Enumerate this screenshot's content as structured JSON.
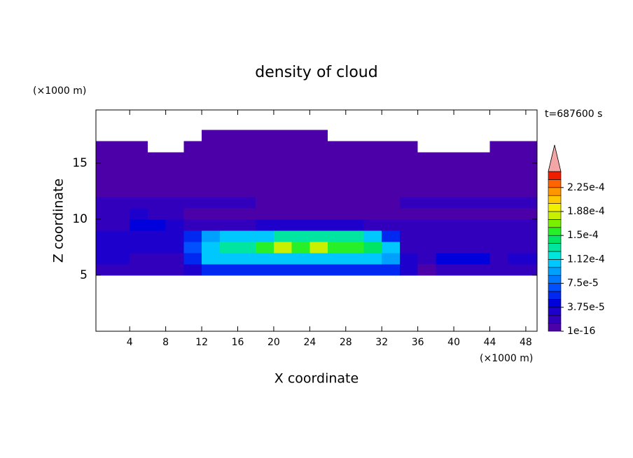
{
  "chart_data": {
    "type": "contour",
    "title": "density of cloud",
    "x_unit_label": "(×1000 m)",
    "y_unit_label": "(×1000 m)",
    "time_label": "t=687600 s",
    "xlabel": "X coordinate",
    "ylabel": "Z coordinate",
    "xlim": [
      0.25,
      49.25
    ],
    "ylim": [
      0,
      19.75
    ],
    "xticks": [
      4,
      8,
      12,
      16,
      20,
      24,
      28,
      32,
      36,
      40,
      44,
      48
    ],
    "yticks": [
      5,
      10,
      15
    ],
    "x": [
      1,
      3,
      5,
      7,
      9,
      11,
      13,
      15,
      17,
      19,
      21,
      23,
      25,
      27,
      29,
      31,
      33,
      35,
      37,
      39,
      41,
      43,
      45,
      47,
      49
    ],
    "z": [
      0.5,
      1.5,
      2.5,
      3.5,
      4.5,
      5.5,
      6.5,
      7.5,
      8.5,
      9.5,
      10.5,
      11.5,
      12.5,
      13.5,
      14.5,
      15.5,
      16.5,
      17.5,
      18.5,
      19.5
    ],
    "values": [
      [
        0,
        0,
        0,
        0,
        0,
        0,
        0,
        0,
        0,
        0,
        0,
        0,
        0,
        0,
        0,
        0,
        0,
        0,
        0,
        0,
        0,
        0,
        0,
        0,
        0
      ],
      [
        0,
        0,
        0,
        0,
        0,
        0,
        0,
        0,
        0,
        0,
        0,
        0,
        0,
        0,
        0,
        0,
        0,
        0,
        0,
        0,
        0,
        0,
        0,
        0,
        0
      ],
      [
        0,
        0,
        0,
        0,
        0,
        0,
        0,
        0,
        0,
        0,
        0,
        0,
        0,
        0,
        0,
        0,
        0,
        0,
        0,
        0,
        0,
        0,
        0,
        0,
        0
      ],
      [
        0,
        0,
        0,
        0,
        0,
        0,
        0,
        0,
        0,
        0,
        0,
        0,
        0,
        0,
        0,
        0,
        0,
        0,
        0,
        0,
        0,
        0,
        0,
        0,
        0
      ],
      [
        0,
        0,
        0,
        0,
        0,
        0,
        0,
        0,
        0,
        0,
        0,
        0,
        0,
        0,
        0,
        0,
        0,
        0,
        0,
        0,
        0,
        0,
        0,
        0,
        0
      ],
      [
        2e-05,
        2e-05,
        1.5e-05,
        1.5e-05,
        1.5e-05,
        2.5e-05,
        5e-05,
        5e-05,
        5e-05,
        5e-05,
        6e-05,
        6e-05,
        6e-05,
        6e-05,
        5e-05,
        5e-05,
        5e-05,
        2.5e-05,
        1e-05,
        2e-05,
        2e-05,
        2e-05,
        1.5e-05,
        1.5e-05,
        1.5e-05
      ],
      [
        3.5e-05,
        3.5e-05,
        2e-05,
        2e-05,
        2e-05,
        6e-05,
        0.0001,
        0.00011,
        0.00011,
        0.00011,
        0.00011,
        0.00011,
        0.00011,
        0.00011,
        0.00011,
        0.00011,
        9e-05,
        3e-05,
        1.5e-05,
        4e-05,
        4e-05,
        4e-05,
        2e-05,
        3e-05,
        3e-05
      ],
      [
        2.5e-05,
        2.5e-05,
        2.5e-05,
        2.5e-05,
        2.5e-05,
        7e-05,
        0.00011,
        0.00013,
        0.000135,
        0.00016,
        0.000175,
        0.00016,
        0.000175,
        0.00016,
        0.00016,
        0.00014,
        0.0001,
        2e-05,
        1.5e-05,
        1.5e-05,
        1.5e-05,
        1.5e-05,
        1.5e-05,
        1.5e-05,
        1.5e-05
      ],
      [
        2.5e-05,
        2.5e-05,
        2.5e-05,
        2.5e-05,
        2.5e-05,
        5e-05,
        9e-05,
        0.000105,
        0.000105,
        0.000105,
        0.000125,
        0.000125,
        0.000125,
        0.000125,
        0.000125,
        0.0001,
        6e-05,
        2e-05,
        1.5e-05,
        1.5e-05,
        1.5e-05,
        1.5e-05,
        1.5e-05,
        1.5e-05,
        1.5e-05
      ],
      [
        2e-05,
        2e-05,
        4e-05,
        4e-05,
        2.5e-05,
        2e-05,
        2e-05,
        2e-05,
        2e-05,
        3e-05,
        3e-05,
        3e-05,
        3e-05,
        3e-05,
        3e-05,
        1.5e-05,
        1.5e-05,
        1.5e-05,
        1.5e-05,
        1.5e-05,
        1.5e-05,
        1.5e-05,
        1.5e-05,
        1.5e-05,
        1.5e-05
      ],
      [
        1.5e-05,
        1.5e-05,
        3e-05,
        1.5e-05,
        1.5e-05,
        1e-05,
        1e-05,
        1e-05,
        1e-05,
        1e-05,
        1e-05,
        1e-05,
        1e-05,
        1e-05,
        1e-05,
        1e-05,
        1e-05,
        1e-05,
        1e-05,
        1e-05,
        1e-05,
        1e-05,
        1e-05,
        1e-05,
        1e-05
      ],
      [
        1.3e-05,
        1.3e-05,
        1.3e-05,
        1.3e-05,
        1.3e-05,
        1.3e-05,
        1.3e-05,
        1.3e-05,
        1.3e-05,
        5e-06,
        5e-06,
        5e-06,
        5e-06,
        5e-06,
        5e-06,
        5e-06,
        5e-06,
        1.3e-05,
        1.3e-05,
        1.3e-05,
        1.3e-05,
        1.3e-05,
        1.3e-05,
        1.3e-05,
        1.3e-05
      ],
      [
        5e-06,
        5e-06,
        5e-06,
        5e-06,
        5e-06,
        5e-06,
        5e-06,
        5e-06,
        5e-06,
        5e-06,
        5e-06,
        5e-06,
        5e-06,
        5e-06,
        5e-06,
        5e-06,
        5e-06,
        5e-06,
        5e-06,
        5e-06,
        5e-06,
        5e-06,
        5e-06,
        5e-06,
        5e-06
      ],
      [
        5e-06,
        5e-06,
        5e-06,
        5e-06,
        5e-06,
        5e-06,
        5e-06,
        5e-06,
        5e-06,
        5e-06,
        5e-06,
        5e-06,
        5e-06,
        5e-06,
        5e-06,
        5e-06,
        5e-06,
        5e-06,
        5e-06,
        5e-06,
        5e-06,
        5e-06,
        5e-06,
        5e-06,
        5e-06
      ],
      [
        5e-06,
        5e-06,
        5e-06,
        5e-06,
        5e-06,
        5e-06,
        5e-06,
        5e-06,
        5e-06,
        5e-06,
        5e-06,
        5e-06,
        5e-06,
        5e-06,
        5e-06,
        5e-06,
        5e-06,
        5e-06,
        5e-06,
        5e-06,
        5e-06,
        5e-06,
        5e-06,
        5e-06,
        5e-06
      ],
      [
        5e-06,
        5e-06,
        5e-06,
        5e-06,
        5e-06,
        5e-06,
        5e-06,
        5e-06,
        5e-06,
        5e-06,
        5e-06,
        5e-06,
        5e-06,
        5e-06,
        5e-06,
        5e-06,
        5e-06,
        5e-06,
        5e-06,
        5e-06,
        5e-06,
        5e-06,
        5e-06,
        5e-06,
        5e-06
      ],
      [
        5e-06,
        5e-06,
        5e-06,
        0,
        0,
        5e-06,
        5e-06,
        5e-06,
        5e-06,
        5e-06,
        5e-06,
        5e-06,
        5e-06,
        5e-06,
        5e-06,
        5e-06,
        5e-06,
        5e-06,
        0,
        0,
        0,
        0,
        5e-06,
        5e-06,
        5e-06
      ],
      [
        0,
        0,
        0,
        0,
        0,
        0,
        5e-06,
        5e-06,
        5e-06,
        5e-06,
        5e-06,
        5e-06,
        5e-06,
        0,
        0,
        0,
        0,
        0,
        0,
        0,
        0,
        0,
        0,
        0,
        0
      ],
      [
        0,
        0,
        0,
        0,
        0,
        0,
        0,
        0,
        0,
        0,
        0,
        0,
        0,
        0,
        0,
        0,
        0,
        0,
        0,
        0,
        0,
        0,
        0,
        0,
        0
      ],
      [
        0,
        0,
        0,
        0,
        0,
        0,
        0,
        0,
        0,
        0,
        0,
        0,
        0,
        0,
        0,
        0,
        0,
        0,
        0,
        0,
        0,
        0,
        0,
        0,
        0
      ]
    ],
    "colorbar": {
      "levels": [
        1e-16,
        1.25e-05,
        2.5e-05,
        3.75e-05,
        5e-05,
        6.25e-05,
        7.5e-05,
        8.75e-05,
        0.0001,
        0.0001125,
        0.000125,
        0.0001375,
        0.00015,
        0.0001625,
        0.000175,
        0.0001875,
        0.0002,
        0.0002125,
        0.000225,
        0.0002375,
        0.00025
      ],
      "colors": [
        "#4b00a8",
        "#3200bc",
        "#1e00cc",
        "#0000dc",
        "#0028f0",
        "#0050ff",
        "#0078ff",
        "#00a0ff",
        "#00c8ff",
        "#00e6dc",
        "#00e6a0",
        "#00e664",
        "#28f028",
        "#78f000",
        "#c8f000",
        "#f0f000",
        "#ffc800",
        "#ff9600",
        "#ff6400",
        "#f01e00"
      ],
      "over_color": "#f4a6a6",
      "ticks": [
        1e-16,
        {
          "value": 3.75e-05,
          "label": "3.75e-5"
        },
        {
          "value": 7.5e-05,
          "label": "7.5e-5"
        },
        {
          "value": 0.0001125,
          "label": "1.12e-4"
        },
        {
          "value": 0.00015,
          "label": "1.5e-4"
        },
        {
          "value": 0.0001875,
          "label": "1.88e-4"
        },
        {
          "value": 0.000225,
          "label": "2.25e-4"
        }
      ]
    }
  }
}
